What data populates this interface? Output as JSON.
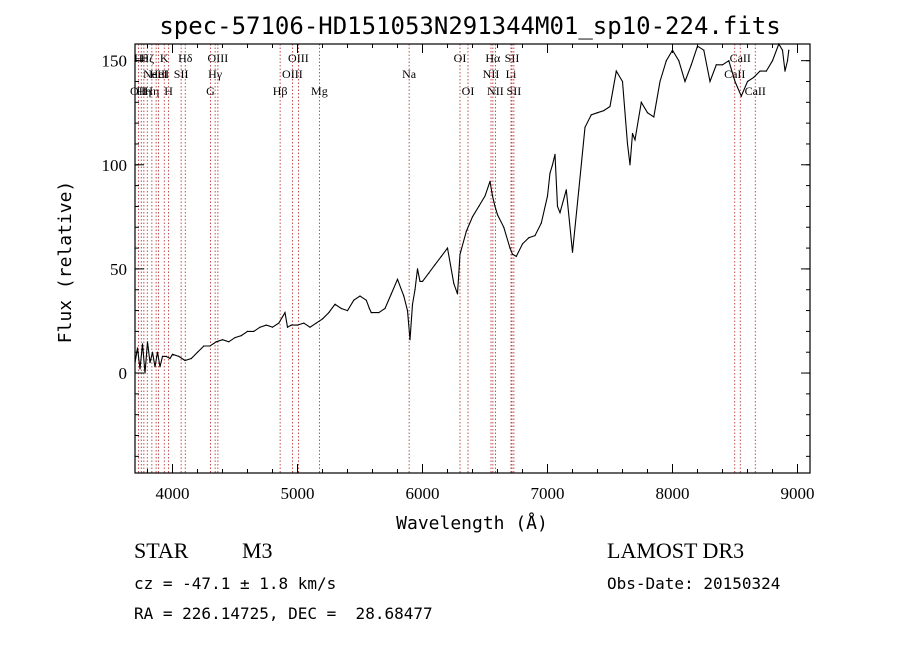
{
  "chart_data": {
    "type": "line",
    "title": "spec-57106-HD151053N291344M01_sp10-224.fits",
    "xlabel": "Wavelength (Å)",
    "ylabel": "Flux (relative)",
    "xlim": [
      3700,
      9100
    ],
    "ylim": [
      -48,
      158
    ],
    "xticks": [
      4000,
      5000,
      6000,
      7000,
      8000,
      9000
    ],
    "yticks": [
      0,
      50,
      100,
      150
    ],
    "grid": false,
    "legend": "none",
    "series": [
      {
        "x": [
          3700,
          3720,
          3740,
          3760,
          3780,
          3800,
          3820,
          3840,
          3860,
          3880,
          3900,
          3920,
          3950,
          3980,
          4000,
          4050,
          4100,
          4150,
          4200,
          4250,
          4300,
          4350,
          4400,
          4450,
          4500,
          4550,
          4600,
          4650,
          4700,
          4750,
          4800,
          4850,
          4880,
          4900,
          4920,
          4950,
          5000,
          5050,
          5100,
          5150,
          5200,
          5250,
          5300,
          5350,
          5400,
          5450,
          5500,
          5550,
          5575,
          5590,
          5600,
          5650,
          5700,
          5750,
          5800,
          5850,
          5880,
          5900,
          5920,
          5940,
          5960,
          5980,
          6000,
          6050,
          6100,
          6150,
          6200,
          6250,
          6280,
          6300,
          6350,
          6400,
          6450,
          6500,
          6540,
          6560,
          6580,
          6600,
          6650,
          6700,
          6720,
          6750,
          6800,
          6850,
          6900,
          6950,
          7000,
          7020,
          7040,
          7060,
          7080,
          7100,
          7150,
          7200,
          7250,
          7300,
          7350,
          7400,
          7450,
          7500,
          7550,
          7600,
          7640,
          7660,
          7680,
          7700,
          7750,
          7800,
          7850,
          7900,
          7950,
          8000,
          8050,
          8100,
          8150,
          8200,
          8250,
          8300,
          8350,
          8400,
          8450,
          8500,
          8550,
          8600,
          8650,
          8700,
          8750,
          8800,
          8850,
          8880,
          8900,
          8920,
          8930
        ],
        "y": [
          5,
          12,
          2,
          14,
          0,
          15,
          5,
          10,
          3,
          10,
          3,
          8,
          8,
          7,
          9,
          8,
          6,
          7,
          10,
          13,
          13,
          15,
          16,
          15,
          17,
          18,
          20,
          20,
          22,
          23,
          22,
          24,
          27,
          29,
          22,
          23,
          23,
          24,
          22,
          24,
          26,
          29,
          33,
          31,
          30,
          35,
          37,
          35,
          31,
          29,
          29,
          29,
          31,
          38,
          45,
          37,
          30,
          16,
          33,
          40,
          50,
          44,
          44,
          48,
          52,
          56,
          60,
          43,
          38,
          57,
          68,
          75,
          80,
          85,
          92,
          85,
          80,
          76,
          70,
          60,
          57,
          56,
          62,
          65,
          66,
          72,
          85,
          96,
          100,
          105,
          80,
          77,
          88,
          58,
          88,
          118,
          124,
          125,
          126,
          128,
          145,
          140,
          110,
          100,
          115,
          112,
          130,
          125,
          123,
          140,
          150,
          155,
          150,
          140,
          148,
          157,
          155,
          140,
          148,
          148,
          150,
          140,
          133,
          140,
          142,
          145,
          145,
          150,
          158,
          155,
          145,
          150,
          155
        ]
      }
    ],
    "lines": [
      {
        "wave": 3727,
        "label": "OII",
        "row": 3
      },
      {
        "wave": 3750,
        "label": "Hθ",
        "row": 1
      },
      {
        "wave": 3771,
        "label": "Hη",
        "row": 3
      },
      {
        "wave": 3798,
        "label": "Hζ",
        "row": 1
      },
      {
        "wave": 3835,
        "label": "Hη",
        "row": 3
      },
      {
        "wave": 3869,
        "label": "NeIII",
        "row": 2
      },
      {
        "wave": 3889,
        "label": "HeI",
        "row": 2
      },
      {
        "wave": 3934,
        "label": "K",
        "row": 1
      },
      {
        "wave": 3969,
        "label": "H",
        "row": 3
      },
      {
        "wave": 4069,
        "label": "SII",
        "row": 2
      },
      {
        "wave": 4102,
        "label": "Hδ",
        "row": 1
      },
      {
        "wave": 4304,
        "label": "G",
        "row": 3
      },
      {
        "wave": 4341,
        "label": "Hγ",
        "row": 2
      },
      {
        "wave": 4363,
        "label": "OIII",
        "row": 1
      },
      {
        "wave": 4861,
        "label": "Hβ",
        "row": 3
      },
      {
        "wave": 4959,
        "label": "OIII",
        "row": 2
      },
      {
        "wave": 5007,
        "label": "OIII",
        "row": 1
      },
      {
        "wave": 5175,
        "label": "Mg",
        "row": 3
      },
      {
        "wave": 5893,
        "label": "Na",
        "row": 2
      },
      {
        "wave": 6300,
        "label": "OI",
        "row": 1
      },
      {
        "wave": 6364,
        "label": "OI",
        "row": 3
      },
      {
        "wave": 6548,
        "label": "NII",
        "row": 2
      },
      {
        "wave": 6563,
        "label": "Hα",
        "row": 1
      },
      {
        "wave": 6583,
        "label": "NII",
        "row": 3
      },
      {
        "wave": 6708,
        "label": "Li",
        "row": 2
      },
      {
        "wave": 6716,
        "label": "SII",
        "row": 1
      },
      {
        "wave": 6731,
        "label": "SII",
        "row": 3
      },
      {
        "wave": 8498,
        "label": "CaII",
        "row": 2
      },
      {
        "wave": 8542,
        "label": "CaII",
        "row": 1
      },
      {
        "wave": 8662,
        "label": "CaII",
        "row": 3
      }
    ]
  },
  "info": {
    "object_class": "STAR",
    "subclass": "M3",
    "survey": "LAMOST DR3",
    "cz_line": "cz = -47.1 ± 1.8 km/s",
    "obs_date_line": "Obs-Date: 20150324",
    "coords_line": "RA = 226.14725, DEC =  28.68477"
  }
}
